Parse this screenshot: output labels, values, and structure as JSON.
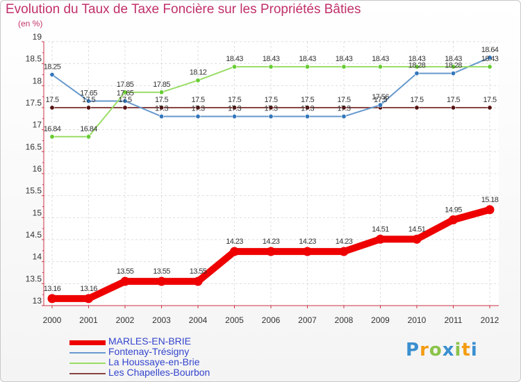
{
  "title": "Evolution du Taux de Taxe Foncière sur les Propriétés Bâties",
  "unit": "(en %)",
  "logo": {
    "text": "Proxiti",
    "letters": [
      "P",
      "r",
      "o",
      "x",
      "i",
      "t",
      "i"
    ],
    "colors": [
      "#3a8fd0",
      "#f39c12",
      "#8bc34a",
      "#3a8fd0",
      "#8bc34a",
      "#f39c12",
      "#3a8fd0"
    ]
  },
  "chart_data": {
    "type": "line",
    "title": "Evolution du Taux de Taxe Foncière sur les Propriétés Bâties",
    "ylabel": "(en %)",
    "xlabel": "",
    "ylim": [
      13,
      19
    ],
    "yticks": [
      13,
      13.5,
      14,
      14.5,
      15,
      15.5,
      16,
      16.5,
      17,
      17.5,
      18,
      18.5,
      19
    ],
    "ytick_labels": [
      "13",
      "13.5",
      "14",
      "14.5",
      "15",
      "15.5",
      "16",
      "16.5",
      "17",
      "17.5",
      "18",
      "18.5",
      "19"
    ],
    "categories": [
      "2000",
      "2001",
      "2002",
      "2003",
      "2004",
      "2005",
      "2006",
      "2007",
      "2008",
      "2009",
      "2010",
      "2011",
      "2012"
    ],
    "grid": true,
    "legend": "bottom-left",
    "series": [
      {
        "name": "MARLES-EN-BRIE",
        "color": "#ee0000",
        "emphasis": true,
        "values": [
          13.16,
          13.16,
          13.55,
          13.55,
          13.55,
          14.23,
          14.23,
          14.23,
          14.23,
          14.51,
          14.51,
          14.95,
          15.18
        ]
      },
      {
        "name": "Fontenay-Trésigny",
        "color": "#6699cc",
        "point_color": "#3377bb",
        "values": [
          18.25,
          17.65,
          17.65,
          17.3,
          17.3,
          17.3,
          17.3,
          17.3,
          17.3,
          17.56,
          18.28,
          18.28,
          18.64
        ]
      },
      {
        "name": "La Houssaye-en-Brie",
        "color": "#99dd66",
        "point_color": "#66cc33",
        "values": [
          16.84,
          16.84,
          17.85,
          17.85,
          18.12,
          18.43,
          18.43,
          18.43,
          18.43,
          18.43,
          18.43,
          18.43,
          18.43
        ]
      },
      {
        "name": "Les Chapelles-Bourbon",
        "color": "#884444",
        "point_color": "#551111",
        "values": [
          17.5,
          17.5,
          17.5,
          17.5,
          17.5,
          17.5,
          17.5,
          17.5,
          17.5,
          17.5,
          17.5,
          17.5,
          17.5
        ]
      }
    ]
  }
}
